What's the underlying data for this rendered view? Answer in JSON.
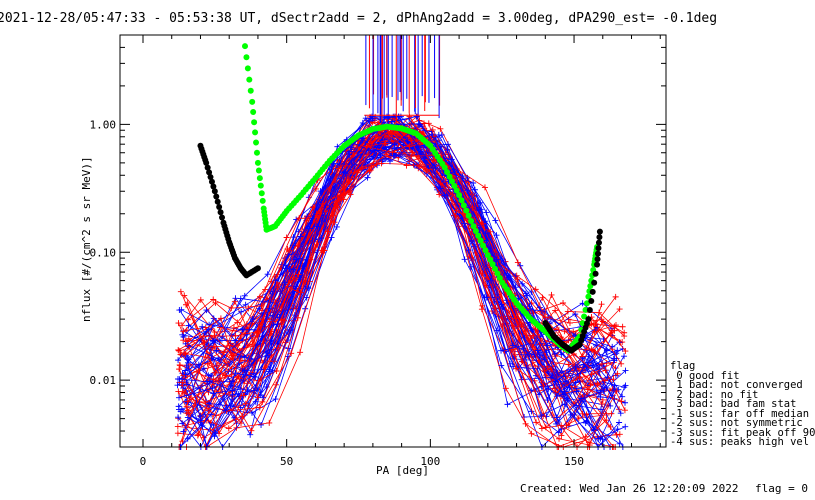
{
  "title": "2021-12-28/05:47:33 - 05:53:38 UT, dSectr2add = 2, dPhAng2add = 3.00deg, dPA290_est=  -0.1deg",
  "footer": {
    "created": "Created: Wed Jan 26 12:20:09 2022",
    "flag": "flag = 0"
  },
  "legend": {
    "title": "flag",
    "items": [
      " 0 good fit",
      " 1 bad: not converged",
      " 2 bad: no fit",
      " 3 bad: bad fam stat",
      "-1 sus: far off median",
      "-2 sus: not symmetric",
      "-3 sus: fit peak off 90",
      "-4 sus: peaks high vel"
    ]
  },
  "colors": {
    "red_traces": "#ff0000",
    "blue_traces": "#0000ff",
    "green_fit": "#00ff00",
    "black_fit": "#000000"
  },
  "chart_data": {
    "type": "line",
    "xlabel": "PA [deg]",
    "ylabel": "nflux [#/(cm^2 s sr MeV)]",
    "xlim": [
      -8,
      182
    ],
    "ylim": [
      0.003,
      5.0
    ],
    "log_y": true,
    "x_ticks": [
      0,
      50,
      100,
      150
    ],
    "y_ticks": [
      {
        "value": 0.01,
        "label": "0.01"
      },
      {
        "value": 0.1,
        "label": "0.10"
      },
      {
        "value": 1.0,
        "label": "1.00"
      }
    ],
    "series": [
      {
        "name": "green fit",
        "color": "#00ff00",
        "x": [
          35,
          38,
          40,
          42,
          43,
          46,
          50,
          55,
          60,
          65,
          70,
          75,
          80,
          85,
          90,
          95,
          100,
          105,
          110,
          115,
          120,
          125,
          130,
          135,
          140,
          145,
          148,
          152,
          155,
          157,
          158
        ],
        "y": [
          5.0,
          1.5,
          0.5,
          0.22,
          0.15,
          0.16,
          0.21,
          0.28,
          0.38,
          0.52,
          0.68,
          0.82,
          0.92,
          0.96,
          0.93,
          0.85,
          0.68,
          0.46,
          0.28,
          0.16,
          0.095,
          0.058,
          0.04,
          0.03,
          0.024,
          0.019,
          0.017,
          0.022,
          0.045,
          0.08,
          0.11
        ]
      },
      {
        "name": "black fit",
        "color": "#000000",
        "x": [
          20,
          22,
          25,
          28,
          30,
          32,
          34,
          36,
          40
        ],
        "y": [
          0.68,
          0.5,
          0.3,
          0.17,
          0.12,
          0.09,
          0.075,
          0.066,
          0.075
        ]
      },
      {
        "name": "black fit right",
        "color": "#000000",
        "x": [
          140,
          143,
          146,
          149,
          152,
          155,
          158,
          159
        ],
        "y": [
          0.028,
          0.022,
          0.019,
          0.017,
          0.019,
          0.03,
          0.08,
          0.145
        ]
      }
    ]
  }
}
